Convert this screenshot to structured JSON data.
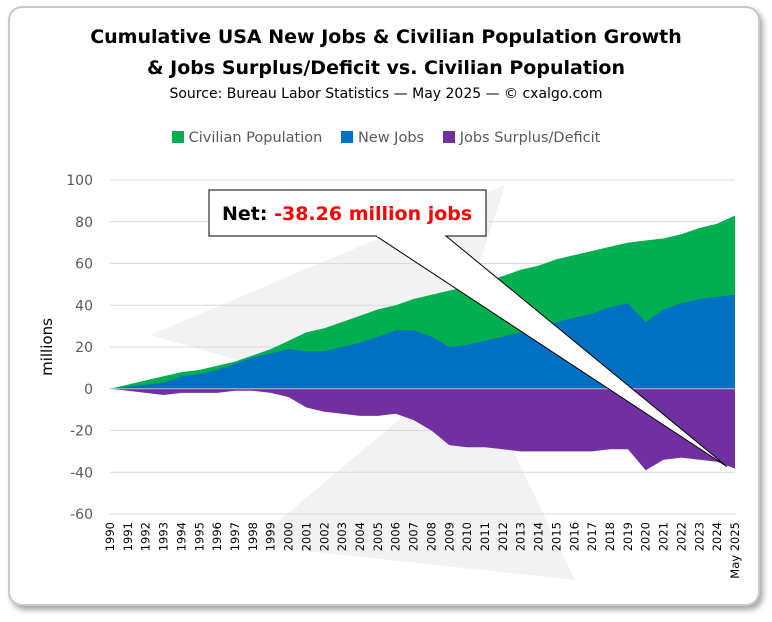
{
  "title_line1": "Cumulative USA New Jobs & Civilian Population Growth",
  "title_line2": "& Jobs Surplus/Deficit vs. Civilian Population",
  "subtitle": "Source: Bureau Labor Statistics — May 2025 — © cxalgo.com",
  "callout": {
    "label": "Net: ",
    "value": "-38.26 million jobs"
  },
  "colors": {
    "population": "#00B050",
    "jobs": "#0070C0",
    "deficit": "#7030A0",
    "callout_value": "#FF0000"
  },
  "chart_data": {
    "type": "area",
    "ylabel": "millions",
    "ylim": [
      -60,
      100
    ],
    "yticks": [
      100,
      80,
      60,
      40,
      20,
      0,
      -20,
      -40,
      -60
    ],
    "grid": true,
    "legend_position": "top",
    "x": [
      "1990",
      "1991",
      "1992",
      "1993",
      "1994",
      "1995",
      "1996",
      "1997",
      "1998",
      "1999",
      "2000",
      "2001",
      "2002",
      "2003",
      "2004",
      "2005",
      "2006",
      "2007",
      "2008",
      "2009",
      "2010",
      "2011",
      "2012",
      "2013",
      "2014",
      "2015",
      "2016",
      "2017",
      "2018",
      "2019",
      "2020",
      "2021",
      "2022",
      "2023",
      "2024",
      "May 2025"
    ],
    "series": [
      {
        "name": "Civilian Population",
        "values": [
          0,
          2,
          4,
          6,
          8,
          9,
          11,
          13,
          16,
          19,
          23,
          27,
          29,
          32,
          35,
          38,
          40,
          43,
          45,
          47,
          49,
          51,
          54,
          57,
          59,
          62,
          64,
          66,
          68,
          70,
          71,
          72,
          74,
          77,
          79,
          83
        ]
      },
      {
        "name": "New Jobs",
        "values": [
          0,
          1,
          2,
          3,
          6,
          7,
          9,
          12,
          15,
          17,
          19,
          18,
          18,
          20,
          22,
          25,
          28,
          28,
          25,
          20,
          21,
          23,
          25,
          27,
          29,
          32,
          34,
          36,
          39,
          41,
          32,
          38,
          41,
          43,
          44,
          45
        ]
      },
      {
        "name": "Jobs Surplus/Deficit",
        "values": [
          0,
          -1,
          -2,
          -3,
          -2,
          -2,
          -2,
          -1,
          -1,
          -2,
          -4,
          -9,
          -11,
          -12,
          -13,
          -13,
          -12,
          -15,
          -20,
          -27,
          -28,
          -28,
          -29,
          -30,
          -30,
          -30,
          -30,
          -30,
          -29,
          -29,
          -39,
          -34,
          -33,
          -34,
          -35,
          -38.26
        ]
      }
    ]
  }
}
